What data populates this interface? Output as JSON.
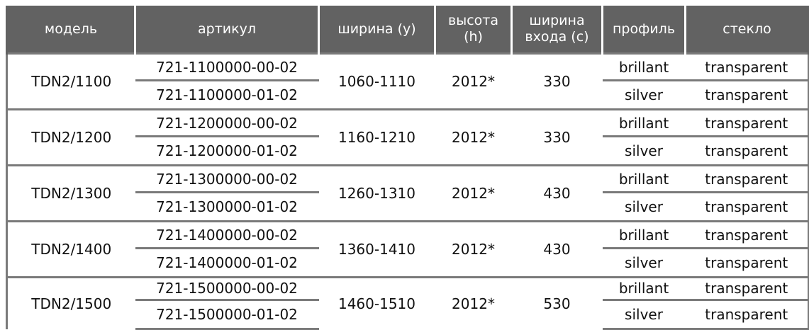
{
  "watermark": {
    "color": "#3d6fb8"
  },
  "colors": {
    "header_bg": "#626262",
    "header_text": "#ffffff",
    "rule": "#7a7a7a"
  },
  "headers": [
    {
      "line1": "модель",
      "line2": ""
    },
    {
      "line1": "артикул",
      "line2": ""
    },
    {
      "line1": "ширина (y)",
      "line2": ""
    },
    {
      "line1": "высота",
      "line2": "(h)"
    },
    {
      "line1": "ширина",
      "line2": "входа (c)"
    },
    {
      "line1": "профиль",
      "line2": ""
    },
    {
      "line1": "стекло",
      "line2": ""
    }
  ],
  "groups": [
    {
      "model": "TDN2/1100",
      "width": "1060-1110",
      "height": "2012*",
      "entry": "330",
      "rows": [
        {
          "article": "721-1100000-00-02",
          "profile": "brillant",
          "glass": "transparent"
        },
        {
          "article": "721-1100000-01-02",
          "profile": "silver",
          "glass": "transparent"
        }
      ]
    },
    {
      "model": "TDN2/1200",
      "width": "1160-1210",
      "height": "2012*",
      "entry": "330",
      "rows": [
        {
          "article": "721-1200000-00-02",
          "profile": "brillant",
          "glass": "transparent"
        },
        {
          "article": "721-1200000-01-02",
          "profile": "silver",
          "glass": "transparent"
        }
      ]
    },
    {
      "model": "TDN2/1300",
      "width": "1260-1310",
      "height": "2012*",
      "entry": "430",
      "rows": [
        {
          "article": "721-1300000-00-02",
          "profile": "brillant",
          "glass": "transparent"
        },
        {
          "article": "721-1300000-01-02",
          "profile": "silver",
          "glass": "transparent"
        }
      ]
    },
    {
      "model": "TDN2/1400",
      "width": "1360-1410",
      "height": "2012*",
      "entry": "430",
      "rows": [
        {
          "article": "721-1400000-00-02",
          "profile": "brillant",
          "glass": "transparent"
        },
        {
          "article": "721-1400000-01-02",
          "profile": "silver",
          "glass": "transparent"
        }
      ]
    },
    {
      "model": "TDN2/1500",
      "width": "1460-1510",
      "height": "2012*",
      "entry": "530",
      "rows": [
        {
          "article": "721-1500000-00-02",
          "profile": "brillant",
          "glass": "transparent"
        },
        {
          "article": "721-1500000-01-02",
          "profile": "silver",
          "glass": "transparent"
        }
      ]
    }
  ]
}
